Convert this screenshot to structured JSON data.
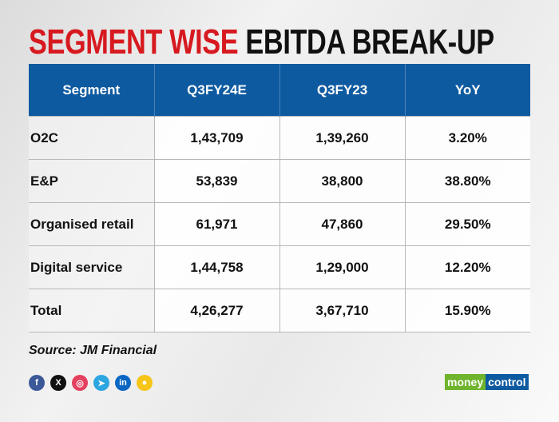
{
  "title": {
    "part1": "SEGMENT WISE",
    "part2": "EBITDA BREAK-UP"
  },
  "table": {
    "headers": [
      "Segment",
      "Q3FY24E",
      "Q3FY23",
      "YoY"
    ],
    "rows": [
      [
        "O2C",
        "1,43,709",
        "1,39,260",
        "3.20%"
      ],
      [
        "E&P",
        "53,839",
        "38,800",
        "38.80%"
      ],
      [
        "Organised retail",
        "61,971",
        "47,860",
        "29.50%"
      ],
      [
        "Digital service",
        "1,44,758",
        "1,29,000",
        "12.20%"
      ],
      [
        "Total",
        "4,26,277",
        "3,67,710",
        "15.90%"
      ]
    ]
  },
  "source": "Source: JM Financial",
  "socials": [
    {
      "icon": "facebook-icon",
      "glyph": "f",
      "color": "#3b5998"
    },
    {
      "icon": "x-icon",
      "glyph": "X",
      "color": "#111111"
    },
    {
      "icon": "instagram-icon",
      "glyph": "◎",
      "color": "#e4405f"
    },
    {
      "icon": "telegram-icon",
      "glyph": "➤",
      "color": "#2ca5e0"
    },
    {
      "icon": "linkedin-icon",
      "glyph": "in",
      "color": "#0a66c2"
    },
    {
      "icon": "koo-icon",
      "glyph": "●",
      "color": "#f5c518"
    }
  ],
  "logo": {
    "part1": "money",
    "part2": "control"
  },
  "colors": {
    "header": "#0e5aa0",
    "title_red": "#d71920"
  }
}
